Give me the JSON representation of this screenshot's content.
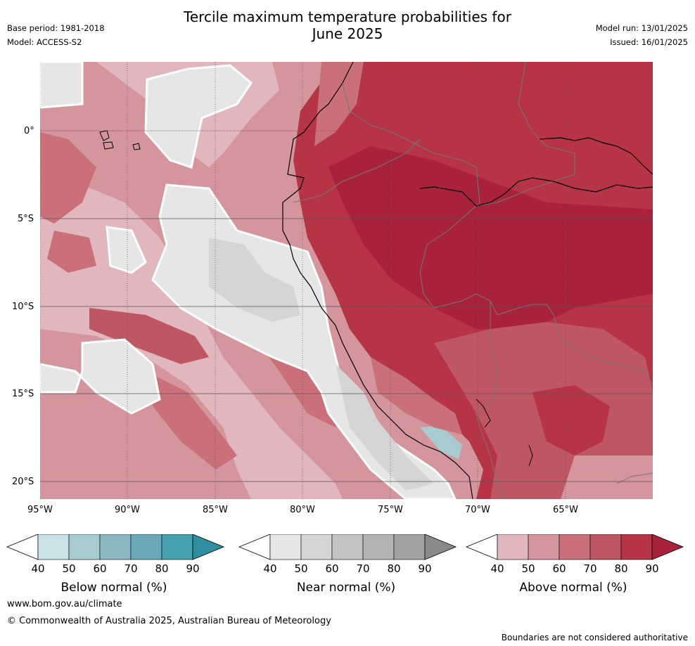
{
  "header": {
    "title_line1": "Tercile maximum temperature probabilities for",
    "title_line2": "June 2025",
    "base_period": "Base period: 1981-2018",
    "model": "Model: ACCESS-S2",
    "model_run": "Model run: 13/01/2025",
    "issued": "Issued: 16/01/2025"
  },
  "map": {
    "lat_labels": [
      "0°",
      "5°S",
      "10°S",
      "15°S",
      "20°S"
    ],
    "lon_labels": [
      "95°W",
      "90°W",
      "85°W",
      "80°W",
      "75°W",
      "70°W",
      "65°W"
    ]
  },
  "colorbars": [
    {
      "name": "Below normal (%)",
      "ticks": [
        "40",
        "50",
        "60",
        "70",
        "80",
        "90"
      ],
      "colors": [
        "#c9e2e7",
        "#a8cbd0",
        "#89b8c2",
        "#6aaab8",
        "#45a1b0",
        "#2f8fa0"
      ]
    },
    {
      "name": "Near normal (%)",
      "ticks": [
        "40",
        "50",
        "60",
        "70",
        "80",
        "90"
      ],
      "colors": [
        "#e6e6e6",
        "#d5d5d5",
        "#c4c4c4",
        "#b4b4b4",
        "#a2a2a2",
        "#8a8a8a"
      ]
    },
    {
      "name": "Above normal (%)",
      "ticks": [
        "40",
        "50",
        "60",
        "70",
        "80",
        "90"
      ],
      "colors": [
        "#e1b7bd",
        "#d4959d",
        "#c9707b",
        "#bf5663",
        "#b63446",
        "#a8223c"
      ]
    }
  ],
  "footer": {
    "url": "www.bom.gov.au/climate",
    "copyright": "© Commonwealth of Australia 2025, Australian Bureau of Meteorology",
    "disclaimer": "Boundaries are not considered authoritative"
  }
}
